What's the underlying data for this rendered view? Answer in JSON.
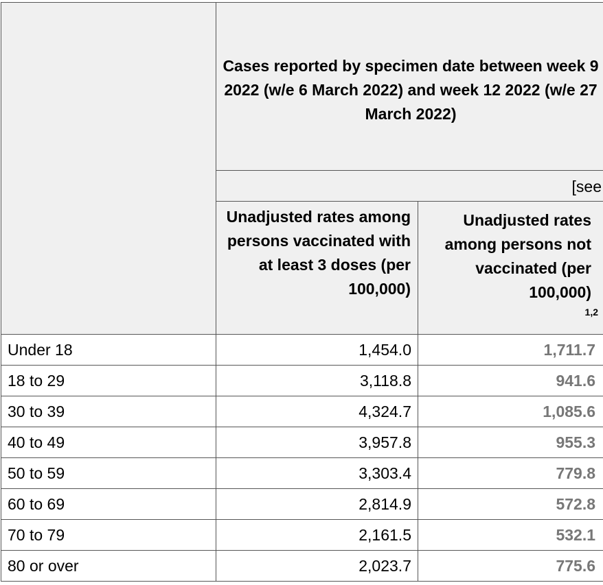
{
  "header": {
    "title": "Cases reported by specimen date between week 9 2022 (w/e 6 March 2022) and week 12 2022 (w/e 27 March 2022)",
    "see_note": "[see",
    "col_vaccinated": "Unadjusted rates among persons vaccinated with at least 3 doses (per 100,000)",
    "col_unvaccinated": "Unadjusted rates among persons not vaccinated (per 100,000)",
    "col_unvaccinated_sup": "1,2"
  },
  "rows": [
    {
      "age": "Under 18",
      "vaccinated": "1,454.0",
      "unvaccinated": "1,711.7"
    },
    {
      "age": "18 to 29",
      "vaccinated": "3,118.8",
      "unvaccinated": "941.6"
    },
    {
      "age": "30 to 39",
      "vaccinated": "4,324.7",
      "unvaccinated": "1,085.6"
    },
    {
      "age": "40 to 49",
      "vaccinated": "3,957.8",
      "unvaccinated": "955.3"
    },
    {
      "age": "50 to 59",
      "vaccinated": "3,303.4",
      "unvaccinated": "779.8"
    },
    {
      "age": "60 to 69",
      "vaccinated": "2,814.9",
      "unvaccinated": "572.8"
    },
    {
      "age": "70 to 79",
      "vaccinated": "2,161.5",
      "unvaccinated": "532.1"
    },
    {
      "age": "80 or over",
      "vaccinated": "2,023.7",
      "unvaccinated": "775.6"
    }
  ]
}
